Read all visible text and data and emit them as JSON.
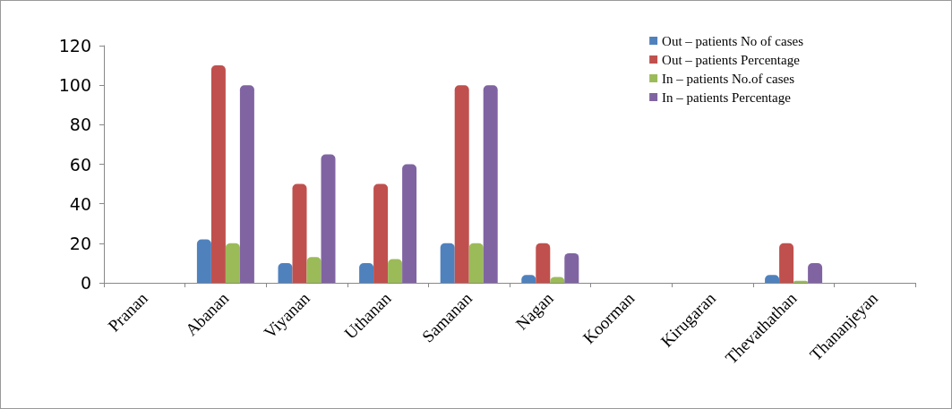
{
  "chart_data": {
    "type": "bar",
    "categories": [
      "Pranan",
      "Abanan",
      "Viyanan",
      "Uthanan",
      "Samanan",
      "Nagan",
      "Koorman",
      "Kirugaran",
      "Thevathathan",
      "Thananjeyan"
    ],
    "series": [
      {
        "name": "Out – patients No of cases",
        "color": "#4f81bd",
        "values": [
          0,
          22,
          10,
          10,
          20,
          4,
          0,
          0,
          4,
          0
        ]
      },
      {
        "name": "Out – patients Percentage",
        "color": "#c0504d",
        "values": [
          0,
          110,
          50,
          50,
          100,
          20,
          0,
          0,
          20,
          0
        ]
      },
      {
        "name": "In – patients No.of cases",
        "color": "#9bbb59",
        "values": [
          0,
          20,
          13,
          12,
          20,
          3,
          0,
          0,
          1,
          0
        ]
      },
      {
        "name": "In – patients Percentage",
        "color": "#8064a2",
        "values": [
          0,
          100,
          65,
          60,
          100,
          15,
          0,
          0,
          10,
          0
        ]
      }
    ],
    "ylim": [
      0,
      120
    ],
    "yticks": [
      0,
      20,
      40,
      60,
      80,
      100,
      120
    ],
    "grid": false,
    "legend": "top right"
  }
}
